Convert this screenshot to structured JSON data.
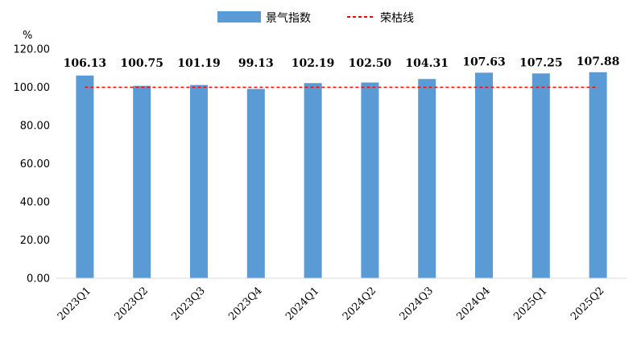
{
  "chart_data": {
    "type": "bar",
    "unit_label": "%",
    "categories": [
      "2023Q1",
      "2023Q2",
      "2023Q3",
      "2023Q4",
      "2024Q1",
      "2024Q2",
      "2024Q3",
      "2024Q4",
      "2025Q1",
      "2025Q2"
    ],
    "series": [
      {
        "name": "景气指数",
        "type": "bar",
        "color": "#5B9BD5",
        "values": [
          106.13,
          100.75,
          101.19,
          99.13,
          102.19,
          102.5,
          104.31,
          107.63,
          107.25,
          107.88
        ],
        "value_labels": [
          "106.13",
          "100.75",
          "101.19",
          "99.13",
          "102.19",
          "102.50",
          "104.31",
          "107.63",
          "107.25",
          "107.88"
        ]
      },
      {
        "name": "荣枯线",
        "type": "line",
        "style": "dashed",
        "color": "#FF0000",
        "values": [
          100,
          100,
          100,
          100,
          100,
          100,
          100,
          100,
          100,
          100
        ]
      }
    ],
    "ylim": [
      0,
      120
    ],
    "yticks": [
      0,
      20,
      40,
      60,
      80,
      100,
      120
    ],
    "ytick_labels": [
      "0.00",
      "20.00",
      "40.00",
      "60.00",
      "80.00",
      "100.00",
      "120.00"
    ],
    "grid": false,
    "legend_position": "top-center"
  }
}
